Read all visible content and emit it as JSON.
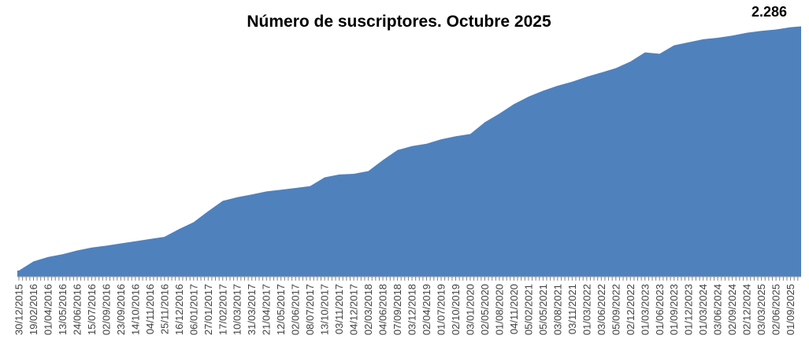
{
  "chart_data": {
    "type": "area",
    "title": "Número de suscriptores. Octubre 2025",
    "series_name": "Número de suscriptores",
    "final_value": 2286,
    "final_label": "2.286",
    "ylim": [
      0,
      2286
    ],
    "grid": false,
    "legend": false,
    "categories": [
      "30/12/2015",
      "19/02/2016",
      "01/04/2016",
      "13/05/2016",
      "24/06/2016",
      "15/07/2016",
      "02/09/2016",
      "23/09/2016",
      "14/10/2016",
      "04/11/2016",
      "25/11/2016",
      "16/12/2016",
      "06/01/2017",
      "27/01/2017",
      "17/02/2017",
      "10/03/2017",
      "31/03/2017",
      "21/04/2017",
      "12/05/2017",
      "02/06/2017",
      "08/07/2017",
      "13/10/2017",
      "03/11/2017",
      "04/12/2017",
      "02/03/2018",
      "04/06/2018",
      "07/09/2018",
      "03/12/2018",
      "02/04/2019",
      "01/07/2019",
      "02/10/2019",
      "03/01/2020",
      "02/05/2020",
      "01/08/2020",
      "04/11/2020",
      "05/02/2021",
      "05/05/2021",
      "03/08/2021",
      "03/11/2021",
      "01/03/2022",
      "03/06/2022",
      "05/09/2022",
      "02/12/2022",
      "01/03/2023",
      "01/06/2023",
      "01/09/2023",
      "01/12/2023",
      "01/03/2024",
      "03/06/2024",
      "02/09/2024",
      "02/12/2024",
      "03/03/2025",
      "02/06/2025",
      "01/09/2025"
    ],
    "values": [
      54,
      137,
      178,
      203,
      237,
      264,
      281,
      302,
      321,
      342,
      362,
      433,
      496,
      597,
      691,
      724,
      750,
      777,
      793,
      809,
      826,
      906,
      932,
      938,
      963,
      1064,
      1155,
      1191,
      1213,
      1254,
      1281,
      1302,
      1410,
      1488,
      1575,
      1643,
      1697,
      1743,
      1780,
      1825,
      1864,
      1904,
      1965,
      2048,
      2035,
      2113,
      2141,
      2168,
      2182,
      2202,
      2228,
      2244,
      2257,
      2278
    ],
    "axis": {
      "ticks_per_label": 4
    },
    "colors": {
      "area_fill": "#4f81bd",
      "axis_tick": "#808080",
      "axis_line": "#9a9a9a",
      "label_text": "#404040",
      "title_text": "#000000"
    }
  }
}
